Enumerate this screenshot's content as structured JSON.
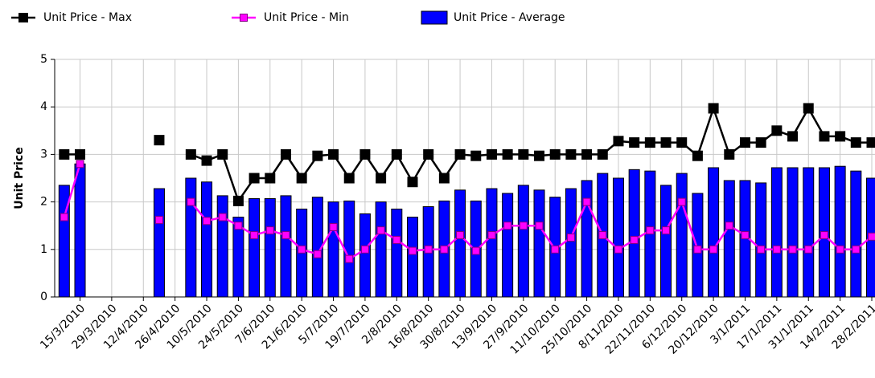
{
  "chart_data": {
    "type": "combo",
    "y_label": "Unit Price",
    "categories": [
      null,
      "15/3/2010",
      null,
      "29/3/2010",
      null,
      "12/4/2010",
      null,
      "26/4/2010",
      null,
      "10/5/2010",
      null,
      "24/5/2010",
      null,
      "7/6/2010",
      null,
      "21/6/2010",
      null,
      "5/7/2010",
      null,
      "19/7/2010",
      null,
      "2/8/2010",
      null,
      "16/8/2010",
      null,
      "30/8/2010",
      null,
      "13/9/2010",
      null,
      "27/9/2010",
      null,
      "11/10/2010",
      null,
      "25/10/2010",
      null,
      "8/11/2010",
      null,
      "22/11/2010",
      null,
      "6/12/2010",
      null,
      "20/12/2010",
      null,
      "3/1/2011",
      null,
      "17/1/2011",
      null,
      "31/1/2011",
      null,
      "14/2/2011",
      null,
      "28/2/2011"
    ],
    "series": [
      {
        "name": "Unit Price - Max",
        "type": "line",
        "color": "#000000",
        "values": [
          3.0,
          3.0,
          null,
          null,
          null,
          null,
          3.3,
          null,
          3.0,
          2.87,
          3.0,
          2.02,
          2.5,
          2.5,
          3.0,
          2.5,
          2.97,
          3.0,
          2.5,
          3.0,
          2.5,
          3.0,
          2.42,
          3.0,
          2.5,
          3.0,
          2.97,
          3.0,
          3.0,
          3.0,
          2.97,
          3.0,
          3.0,
          3.0,
          3.0,
          3.28,
          3.25,
          3.25,
          3.25,
          3.25,
          2.97,
          3.97,
          3.0,
          3.25,
          3.25,
          3.5,
          3.38,
          3.97,
          3.38,
          3.38,
          3.25,
          3.25
        ]
      },
      {
        "name": "Unit Price - Min",
        "type": "line",
        "color": "#ff00ff",
        "values": [
          1.68,
          2.8,
          null,
          null,
          null,
          null,
          1.62,
          null,
          2.0,
          1.6,
          1.68,
          1.5,
          1.3,
          1.4,
          1.3,
          1.0,
          0.9,
          1.47,
          0.8,
          1.0,
          1.4,
          1.2,
          0.97,
          1.0,
          1.0,
          1.3,
          0.97,
          1.3,
          1.5,
          1.5,
          1.5,
          1.0,
          1.25,
          2.0,
          1.3,
          1.0,
          1.2,
          1.4,
          1.4,
          2.0,
          1.0,
          1.0,
          1.5,
          1.3,
          1.0,
          1.0,
          1.0,
          1.0,
          1.3,
          1.0,
          1.0,
          1.27
        ]
      },
      {
        "name": "Unit Price - Average",
        "type": "bar",
        "color": "#0000ff",
        "values": [
          2.35,
          2.8,
          null,
          null,
          null,
          null,
          2.28,
          null,
          2.5,
          2.42,
          2.13,
          1.68,
          2.07,
          2.07,
          2.13,
          1.85,
          2.1,
          2.0,
          2.02,
          1.75,
          2.0,
          1.85,
          1.68,
          1.9,
          2.02,
          2.25,
          2.02,
          2.28,
          2.18,
          2.35,
          2.25,
          2.1,
          2.28,
          2.45,
          2.6,
          2.5,
          2.68,
          2.65,
          2.35,
          2.6,
          2.18,
          2.72,
          2.45,
          2.45,
          2.4,
          2.72,
          2.72,
          2.72,
          2.72,
          2.75,
          2.65,
          2.5
        ]
      }
    ],
    "ylim": [
      0,
      5
    ],
    "yticks": [
      0,
      1,
      2,
      3,
      4,
      5
    ],
    "grid": true,
    "legend": "top"
  }
}
